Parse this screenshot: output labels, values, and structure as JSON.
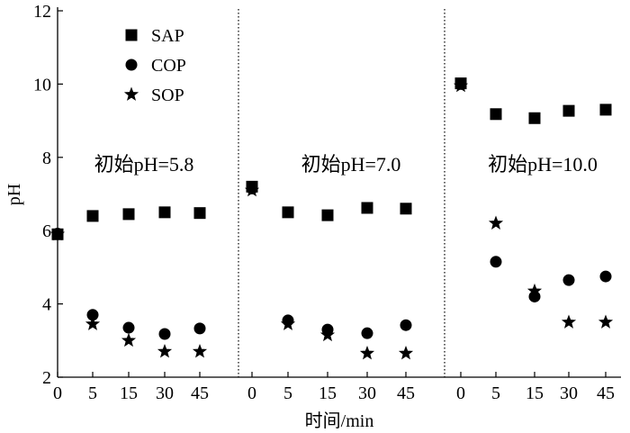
{
  "chart_data": {
    "type": "scatter",
    "ylabel": "pH",
    "xlabel": "时间/min",
    "ylim": [
      2,
      12
    ],
    "yticks": [
      2,
      4,
      6,
      8,
      10,
      12
    ],
    "grid": false,
    "legend_position": "top-left",
    "panels": [
      {
        "annotation": "初始pH=5.8",
        "x": [
          "0",
          "5",
          "15",
          "30",
          "45"
        ],
        "series": [
          {
            "name": "SAP",
            "marker": "square",
            "values": [
              5.9,
              6.4,
              6.45,
              6.5,
              6.48
            ]
          },
          {
            "name": "COP",
            "marker": "circle",
            "values": [
              5.92,
              3.7,
              3.35,
              3.18,
              3.33
            ]
          },
          {
            "name": "SOP",
            "marker": "star",
            "values": [
              5.9,
              3.45,
              3.0,
              2.7,
              2.7
            ]
          }
        ]
      },
      {
        "annotation": "初始pH=7.0",
        "x": [
          "0",
          "5",
          "15",
          "30",
          "45"
        ],
        "series": [
          {
            "name": "SAP",
            "marker": "square",
            "values": [
              7.2,
              6.5,
              6.42,
              6.62,
              6.6
            ]
          },
          {
            "name": "COP",
            "marker": "circle",
            "values": [
              7.15,
              3.55,
              3.3,
              3.2,
              3.42
            ]
          },
          {
            "name": "SOP",
            "marker": "star",
            "values": [
              7.1,
              3.45,
              3.15,
              2.65,
              2.65
            ]
          }
        ]
      },
      {
        "annotation": "初始pH=10.0",
        "x": [
          "0",
          "5",
          "15",
          "30",
          "45"
        ],
        "series": [
          {
            "name": "SAP",
            "marker": "square",
            "values": [
              10.02,
              9.18,
              9.07,
              9.27,
              9.3
            ]
          },
          {
            "name": "COP",
            "marker": "circle",
            "values": [
              10.0,
              5.15,
              4.2,
              4.65,
              4.75
            ]
          },
          {
            "name": "SOP",
            "marker": "star",
            "values": [
              9.95,
              6.2,
              4.35,
              3.5,
              3.5
            ]
          }
        ]
      }
    ],
    "legend": [
      {
        "name": "SAP",
        "marker": "square"
      },
      {
        "name": "COP",
        "marker": "circle"
      },
      {
        "name": "SOP",
        "marker": "star"
      }
    ],
    "colors": {
      "marker": "#000000",
      "axis": "#000000",
      "separator": "#000000"
    }
  }
}
